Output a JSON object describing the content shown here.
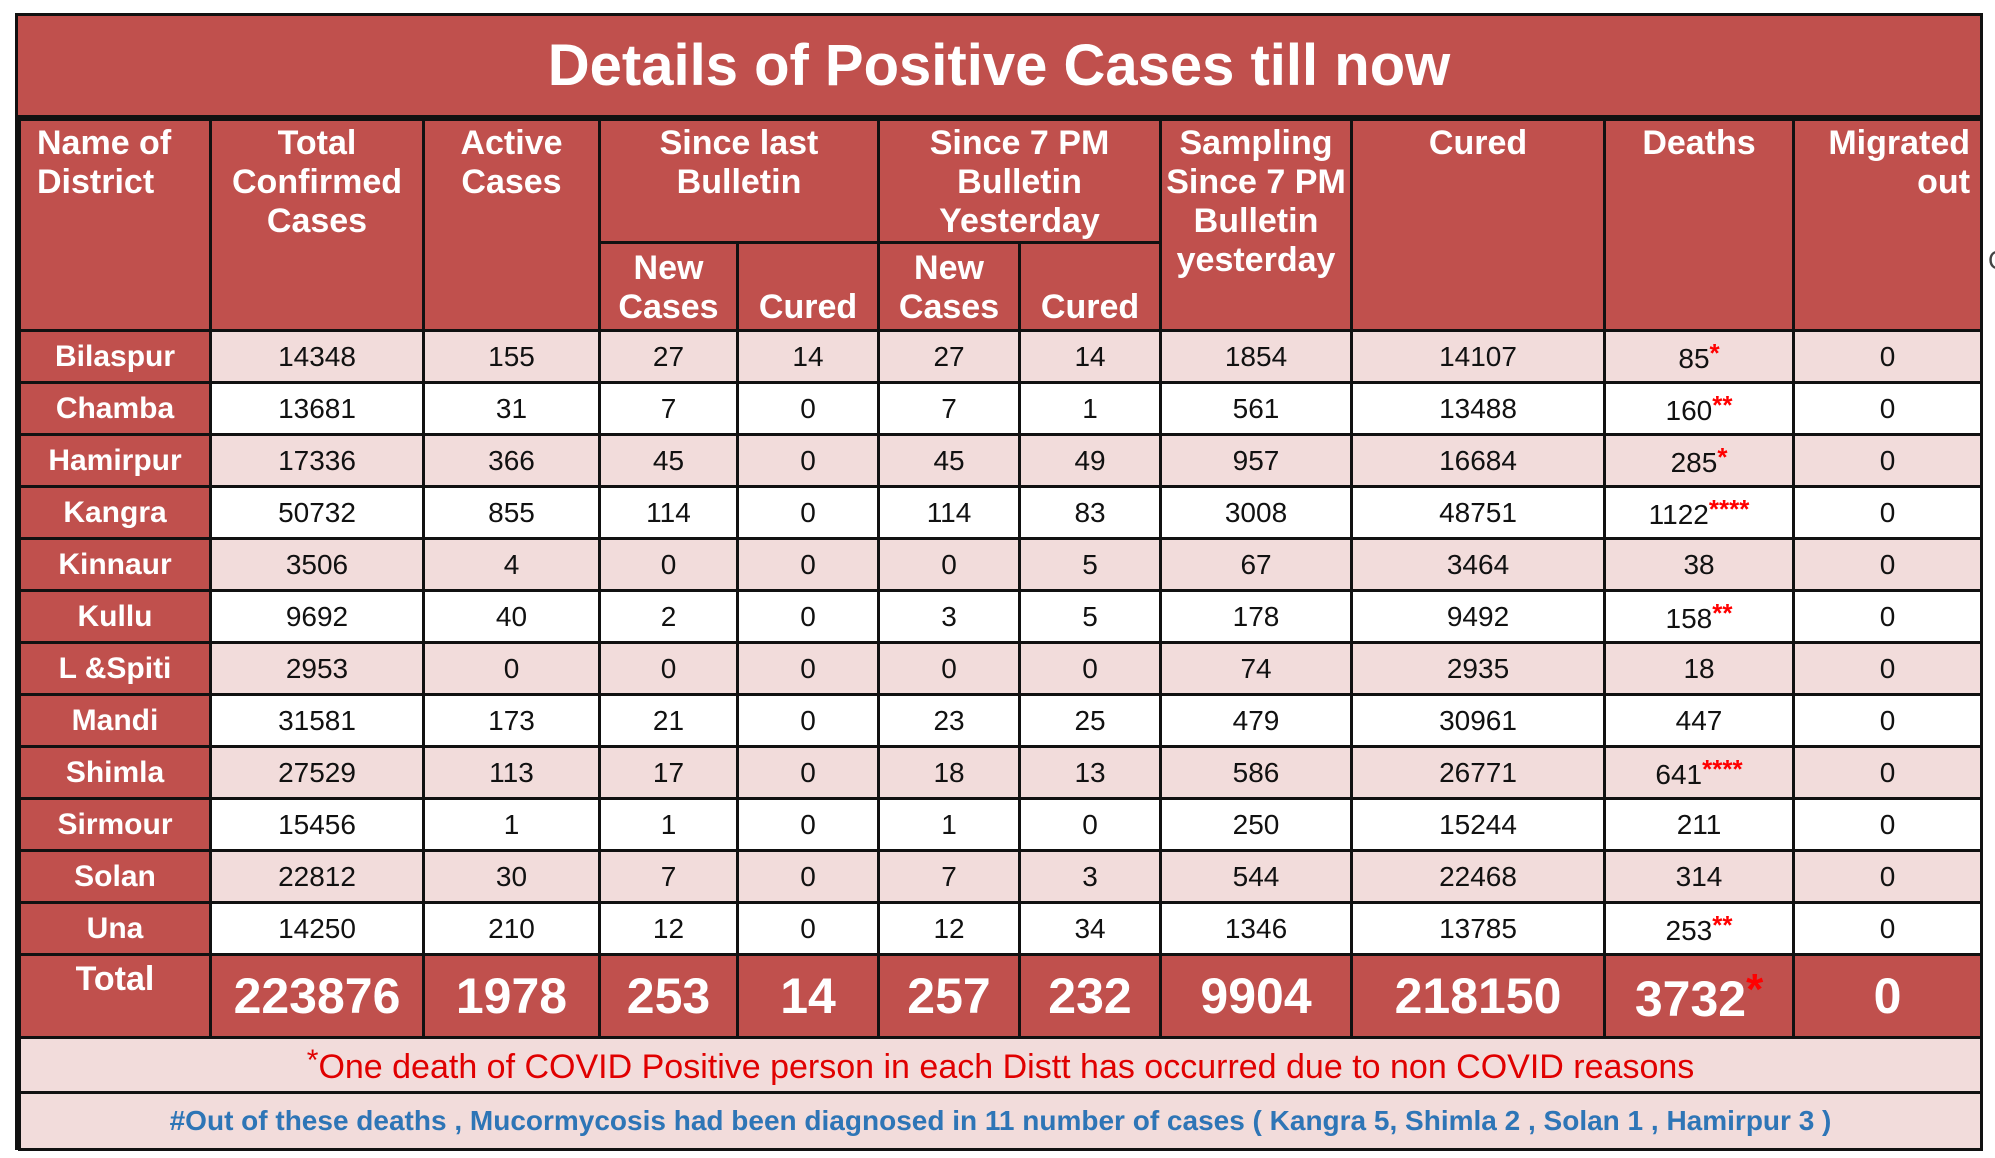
{
  "title": "Details of Positive Cases till now",
  "headers": {
    "district": "Name of District",
    "total_confirmed": "Total Confirmed Cases",
    "active": "Active Cases",
    "since_last": "Since last Bulletin",
    "since_7pm": "Since 7 PM Bulletin Yesterday",
    "new_cases": "New Cases",
    "cured": "Cured",
    "sampling": "Sampling Since 7 PM Bulletin yesterday",
    "cured_total": "Cured",
    "deaths": "Deaths",
    "migrated": "Migrated out"
  },
  "rows": [
    {
      "district": "Bilaspur",
      "total": "14348",
      "active": "155",
      "last_new": "27",
      "last_cured": "14",
      "pm_new": "27",
      "pm_cured": "14",
      "sampling": "1854",
      "cured": "14107",
      "deaths": "85",
      "death_mark": "*",
      "migrated": "0"
    },
    {
      "district": "Chamba",
      "total": "13681",
      "active": "31",
      "last_new": "7",
      "last_cured": "0",
      "pm_new": "7",
      "pm_cured": "1",
      "sampling": "561",
      "cured": "13488",
      "deaths": "160",
      "death_mark": "**",
      "migrated": "0"
    },
    {
      "district": "Hamirpur",
      "total": "17336",
      "active": "366",
      "last_new": "45",
      "last_cured": "0",
      "pm_new": "45",
      "pm_cured": "49",
      "sampling": "957",
      "cured": "16684",
      "deaths": "285",
      "death_mark": "*",
      "migrated": "0"
    },
    {
      "district": "Kangra",
      "total": "50732",
      "active": "855",
      "last_new": "114",
      "last_cured": "0",
      "pm_new": "114",
      "pm_cured": "83",
      "sampling": "3008",
      "cured": "48751",
      "deaths": "1122",
      "death_mark": "****",
      "migrated": "0"
    },
    {
      "district": "Kinnaur",
      "total": "3506",
      "active": "4",
      "last_new": "0",
      "last_cured": "0",
      "pm_new": "0",
      "pm_cured": "5",
      "sampling": "67",
      "cured": "3464",
      "deaths": "38",
      "death_mark": "",
      "migrated": "0"
    },
    {
      "district": "Kullu",
      "total": "9692",
      "active": "40",
      "last_new": "2",
      "last_cured": "0",
      "pm_new": "3",
      "pm_cured": "5",
      "sampling": "178",
      "cured": "9492",
      "deaths": "158",
      "death_mark": "**",
      "migrated": "0"
    },
    {
      "district": "L &Spiti",
      "total": "2953",
      "active": "0",
      "last_new": "0",
      "last_cured": "0",
      "pm_new": "0",
      "pm_cured": "0",
      "sampling": "74",
      "cured": "2935",
      "deaths": "18",
      "death_mark": "",
      "migrated": "0"
    },
    {
      "district": "Mandi",
      "total": "31581",
      "active": "173",
      "last_new": "21",
      "last_cured": "0",
      "pm_new": "23",
      "pm_cured": "25",
      "sampling": "479",
      "cured": "30961",
      "deaths": "447",
      "death_mark": "",
      "migrated": "0"
    },
    {
      "district": "Shimla",
      "total": "27529",
      "active": "113",
      "last_new": "17",
      "last_cured": "0",
      "pm_new": "18",
      "pm_cured": "13",
      "sampling": "586",
      "cured": "26771",
      "deaths": "641",
      "death_mark": "****",
      "migrated": "0"
    },
    {
      "district": "Sirmour",
      "total": "15456",
      "active": "1",
      "last_new": "1",
      "last_cured": "0",
      "pm_new": "1",
      "pm_cured": "0",
      "sampling": "250",
      "cured": "15244",
      "deaths": "211",
      "death_mark": "",
      "migrated": "0"
    },
    {
      "district": "Solan",
      "total": "22812",
      "active": "30",
      "last_new": "7",
      "last_cured": "0",
      "pm_new": "7",
      "pm_cured": "3",
      "sampling": "544",
      "cured": "22468",
      "deaths": "314",
      "death_mark": "",
      "migrated": "0"
    },
    {
      "district": "Una",
      "total": "14250",
      "active": "210",
      "last_new": "12",
      "last_cured": "0",
      "pm_new": "12",
      "pm_cured": "34",
      "sampling": "1346",
      "cured": "13785",
      "deaths": "253",
      "death_mark": "**",
      "migrated": "0"
    }
  ],
  "total": {
    "label": "Total",
    "total": "223876",
    "active": "1978",
    "last_new": "253",
    "last_cured": "14",
    "pm_new": "257",
    "pm_cured": "232",
    "sampling": "9904",
    "cured": "218150",
    "deaths": "3732",
    "death_mark": "*",
    "migrated": "0"
  },
  "notes": {
    "footnote_star": "*",
    "footnote_text": "One death of COVID Positive person in each Distt has occurred due to non COVID reasons",
    "mucormycosis": "#Out of these deaths , Mucormycosis had been diagnosed in 11 number of cases ( Kangra 5, Shimla 2 , Solan 1 , Hamirpur 3 )"
  },
  "edge_mark": "C",
  "colors": {
    "header_red": "#c0504d",
    "row_pink": "#f2dcdb",
    "mark_red": "#ff0000",
    "note_red": "#e00000",
    "note_blue": "#2e75b6"
  }
}
